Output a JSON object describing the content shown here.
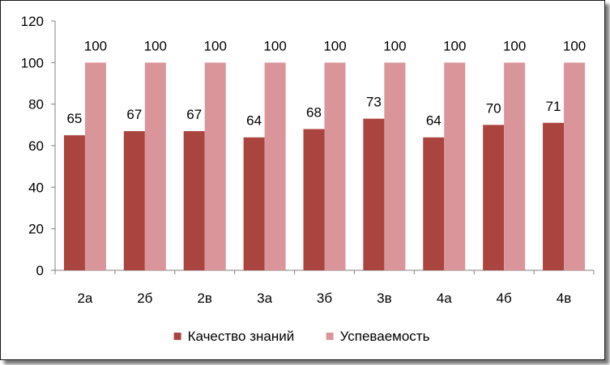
{
  "chart_data": {
    "type": "bar",
    "categories": [
      "2а",
      "2б",
      "2в",
      "3а",
      "3б",
      "3в",
      "4а",
      "4б",
      "4в"
    ],
    "series": [
      {
        "name": "Качество знаний",
        "values": [
          65,
          67,
          67,
          64,
          68,
          73,
          64,
          70,
          71
        ],
        "color": "#a9443f"
      },
      {
        "name": "Успеваемость",
        "values": [
          100,
          100,
          100,
          100,
          100,
          100,
          100,
          100,
          100
        ],
        "color": "#d9959a"
      }
    ],
    "yticks": [
      "0",
      "20",
      "40",
      "60",
      "80",
      "100",
      "120"
    ],
    "ylim": [
      0,
      120
    ],
    "grid": false,
    "legend": "bottom"
  }
}
